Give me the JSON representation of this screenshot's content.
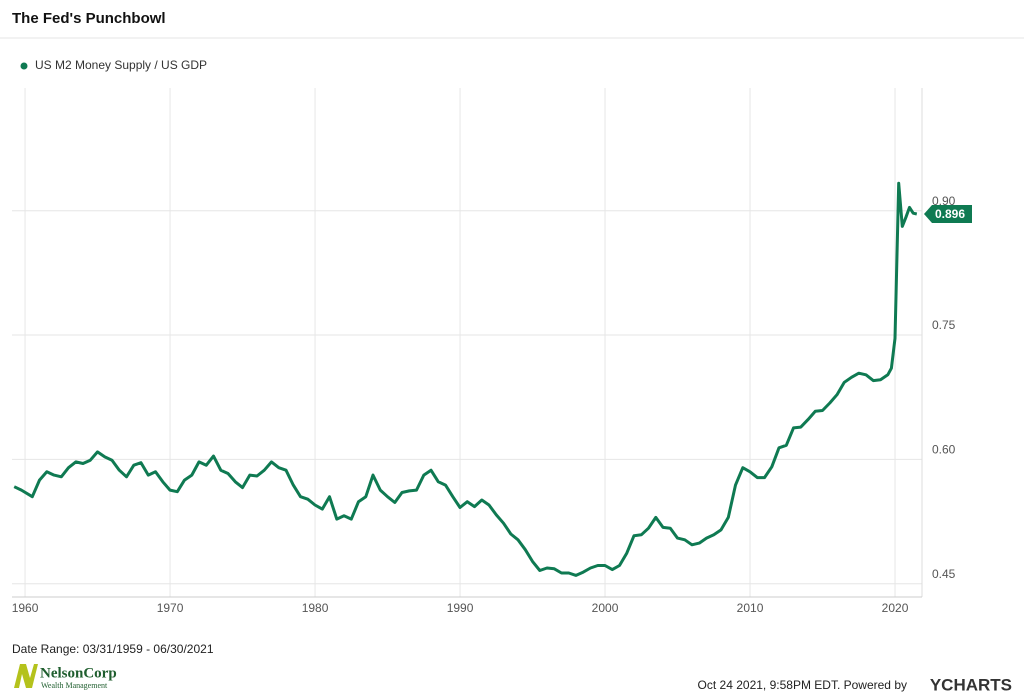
{
  "chart_data": {
    "type": "line",
    "title": "The Fed's Punchbowl",
    "date_range": "Date Range: 03/31/1959 - 06/30/2021",
    "timestamp": "Oct 24 2021, 9:58PM EDT.  Powered by",
    "brand": "YCHARTS",
    "logo_name": "NelsonCorp",
    "logo_sub": "Wealth Management",
    "x": [
      1959.25,
      1959.75,
      1960.5,
      1961,
      1961.5,
      1962,
      1962.5,
      1963,
      1963.5,
      1964,
      1964.5,
      1965,
      1965.5,
      1966,
      1966.5,
      1967,
      1967.5,
      1968,
      1968.5,
      1969,
      1969.5,
      1970,
      1970.5,
      1971,
      1971.5,
      1972,
      1972.5,
      1973,
      1973.5,
      1974,
      1974.5,
      1975,
      1975.5,
      1976,
      1976.5,
      1977,
      1977.5,
      1978,
      1978.5,
      1979,
      1979.5,
      1980,
      1980.5,
      1981,
      1981.5,
      1982,
      1982.5,
      1983,
      1983.5,
      1984,
      1984.5,
      1985,
      1985.5,
      1986,
      1986.5,
      1987,
      1987.5,
      1988,
      1988.5,
      1989,
      1989.5,
      1990,
      1990.5,
      1991,
      1991.5,
      1992,
      1992.5,
      1993,
      1993.5,
      1994,
      1994.5,
      1995,
      1995.5,
      1996,
      1996.5,
      1997,
      1997.5,
      1998,
      1998.5,
      1999,
      1999.5,
      2000,
      2000.5,
      2001,
      2001.5,
      2002,
      2002.5,
      2003,
      2003.5,
      2004,
      2004.5,
      2005,
      2005.5,
      2006,
      2006.5,
      2007,
      2007.5,
      2008,
      2008.5,
      2009,
      2009.5,
      2010,
      2010.5,
      2011,
      2011.5,
      2012,
      2012.5,
      2013,
      2013.5,
      2014,
      2014.5,
      2015,
      2015.5,
      2016,
      2016.5,
      2017,
      2017.5,
      2018,
      2018.5,
      2019,
      2019.5,
      2019.75,
      2020,
      2020.25,
      2020.5,
      2020.75,
      2021,
      2021.25,
      2021.5
    ],
    "series": [
      {
        "name": "US M2 Money Supply / US GDP",
        "color": "#0f7a52",
        "values": [
          0.567,
          0.563,
          0.555,
          0.575,
          0.585,
          0.581,
          0.579,
          0.59,
          0.597,
          0.595,
          0.599,
          0.609,
          0.603,
          0.599,
          0.587,
          0.579,
          0.593,
          0.596,
          0.581,
          0.585,
          0.573,
          0.563,
          0.561,
          0.575,
          0.581,
          0.597,
          0.593,
          0.604,
          0.587,
          0.583,
          0.573,
          0.566,
          0.581,
          0.58,
          0.587,
          0.597,
          0.59,
          0.587,
          0.569,
          0.555,
          0.552,
          0.545,
          0.54,
          0.555,
          0.528,
          0.532,
          0.528,
          0.549,
          0.555,
          0.581,
          0.563,
          0.555,
          0.548,
          0.56,
          0.562,
          0.563,
          0.581,
          0.587,
          0.573,
          0.569,
          0.555,
          0.542,
          0.549,
          0.543,
          0.551,
          0.545,
          0.533,
          0.523,
          0.51,
          0.503,
          0.491,
          0.477,
          0.466,
          0.469,
          0.468,
          0.463,
          0.463,
          0.46,
          0.464,
          0.469,
          0.472,
          0.472,
          0.467,
          0.472,
          0.487,
          0.508,
          0.509,
          0.517,
          0.53,
          0.518,
          0.517,
          0.505,
          0.503,
          0.497,
          0.499,
          0.505,
          0.509,
          0.515,
          0.53,
          0.569,
          0.59,
          0.585,
          0.578,
          0.578,
          0.591,
          0.614,
          0.617,
          0.638,
          0.639,
          0.648,
          0.658,
          0.659,
          0.668,
          0.678,
          0.693,
          0.699,
          0.704,
          0.702,
          0.695,
          0.696,
          0.702,
          0.71,
          0.746,
          0.933,
          0.881,
          0.892,
          0.904,
          0.897,
          0.896
        ],
        "last_value_label": "0.896"
      }
    ],
    "xlim": [
      1959.1,
      2021.86
    ],
    "xticks": [
      1960,
      1970,
      1980,
      1990,
      2000,
      2010,
      2020
    ],
    "ylim": [
      0.434,
      1.048
    ],
    "yticks": [
      0.45,
      {
        "value": 0.6,
        "label": "0.60"
      },
      0.75,
      {
        "value": 0.9,
        "label": "0.90"
      }
    ],
    "grid": true
  }
}
